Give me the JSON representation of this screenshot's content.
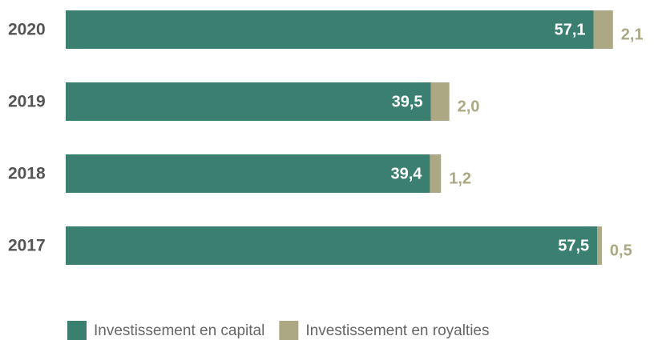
{
  "chart_data": {
    "type": "stacked_barh",
    "categories": [
      "2020",
      "2019",
      "2018",
      "2017"
    ],
    "series": [
      {
        "name": "Investissement en capital",
        "color": "#3b7f71",
        "values": [
          57.1,
          39.5,
          39.4,
          57.5
        ],
        "value_labels": [
          "57,1",
          "39,5",
          "39,4",
          "57,5"
        ]
      },
      {
        "name": "Investissement en royalties",
        "color": "#aba883",
        "values": [
          2.1,
          2.0,
          1.2,
          0.5
        ],
        "value_labels": [
          "2,1",
          "2,0",
          "1,2",
          "0,5"
        ]
      }
    ],
    "xlim": [
      0,
      60
    ],
    "legend": "bottom"
  }
}
